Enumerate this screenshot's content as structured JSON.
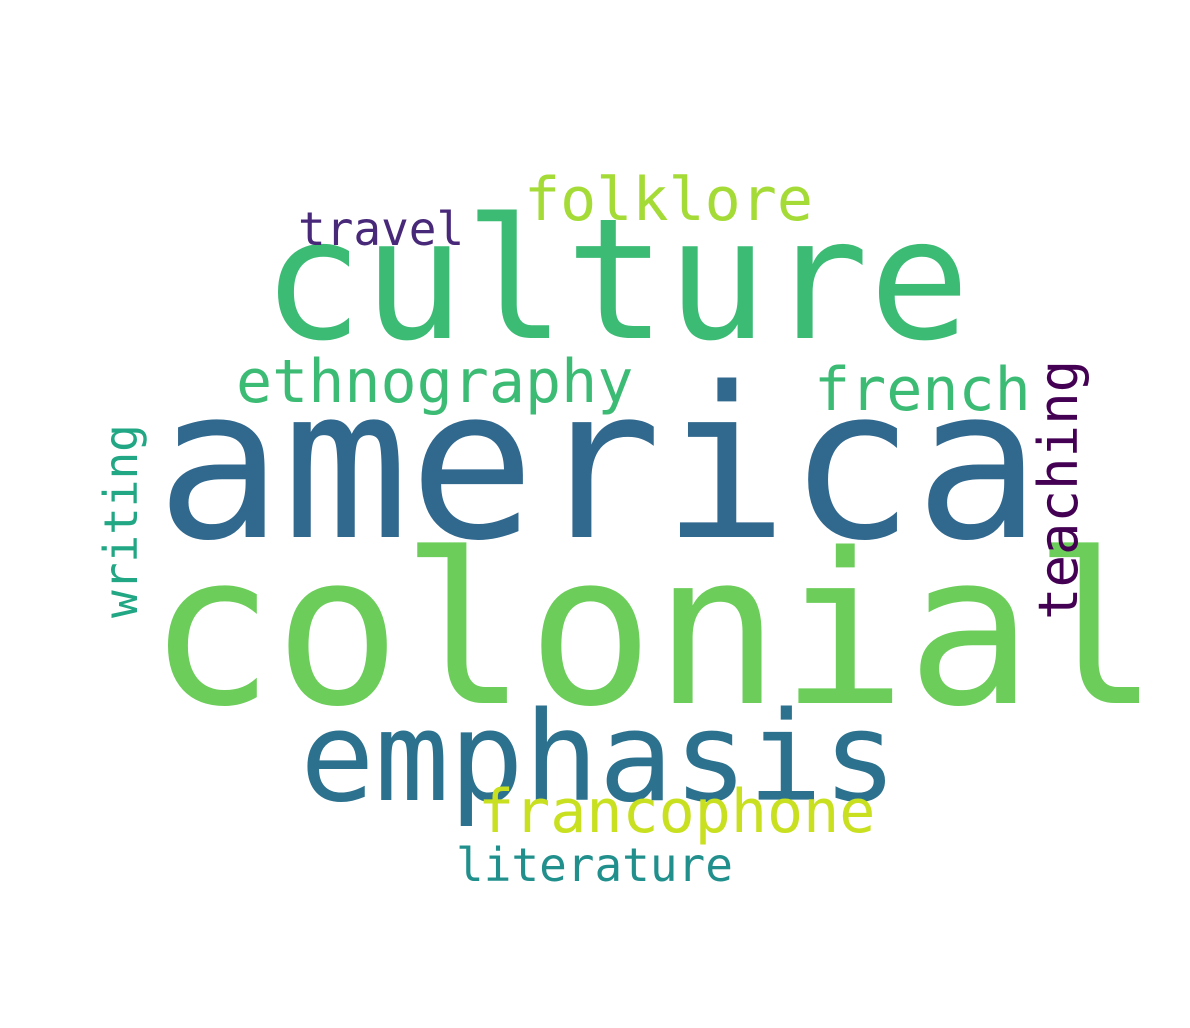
{
  "words": {
    "america": {
      "text": "america",
      "color": "#31688e"
    },
    "colonial": {
      "text": "colonial",
      "color": "#6ccd5a"
    },
    "culture": {
      "text": "culture",
      "color": "#3cbb75"
    },
    "emphasis": {
      "text": "emphasis",
      "color": "#2c728e"
    },
    "ethnography": {
      "text": "ethnography",
      "color": "#3cbb75"
    },
    "french": {
      "text": "french",
      "color": "#3cbb75"
    },
    "folklore": {
      "text": "folklore",
      "color": "#a5db36"
    },
    "francophone": {
      "text": "francophone",
      "color": "#c8e020"
    },
    "travel": {
      "text": "travel",
      "color": "#482878"
    },
    "writing": {
      "text": "writing",
      "color": "#22a785"
    },
    "teaching": {
      "text": "teaching",
      "color": "#440154"
    },
    "literature": {
      "text": "literature",
      "color": "#21908d"
    }
  }
}
